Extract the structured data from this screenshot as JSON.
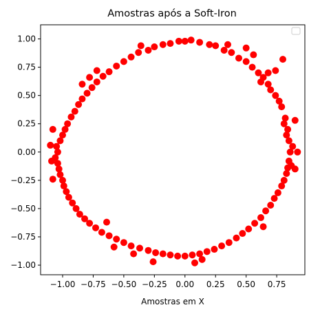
{
  "chart_data": {
    "type": "scatter",
    "title": "Amostras após a Soft-Iron",
    "xlabel": "Amostras em X",
    "ylabel": "",
    "xlim": [
      -1.18,
      0.98
    ],
    "ylim": [
      -1.085,
      1.125
    ],
    "x_ticks": [
      -1.0,
      -0.75,
      -0.5,
      -0.25,
      0.0,
      0.25,
      0.5,
      0.75
    ],
    "x_tick_labels": [
      "−1.00",
      "−0.75",
      "−0.50",
      "−0.25",
      "0.00",
      "0.25",
      "0.50",
      "0.75"
    ],
    "y_ticks": [
      -1.0,
      -0.75,
      -0.5,
      -0.25,
      0.0,
      0.25,
      0.5,
      0.75,
      1.0
    ],
    "y_tick_labels": [
      "−1.00",
      "−0.75",
      "−0.50",
      "−0.25",
      "0.00",
      "0.25",
      "0.50",
      "0.75",
      "1.00"
    ],
    "grid": false,
    "legend": "top-right",
    "legend_entries": [],
    "marker_color": "#ff0000",
    "series": [
      {
        "points": [
          [
            0.86,
            0.0
          ],
          [
            0.85,
            0.1
          ],
          [
            0.84,
            0.2
          ],
          [
            0.82,
            0.3
          ],
          [
            0.79,
            0.4
          ],
          [
            0.74,
            0.5
          ],
          [
            0.68,
            0.6
          ],
          [
            0.6,
            0.7
          ],
          [
            0.5,
            0.8
          ],
          [
            0.38,
            0.88
          ],
          [
            0.25,
            0.94
          ],
          [
            0.12,
            0.97
          ],
          [
            0.0,
            0.98
          ],
          [
            -0.12,
            0.96
          ],
          [
            -0.25,
            0.93
          ],
          [
            -0.38,
            0.88
          ],
          [
            -0.5,
            0.8
          ],
          [
            -0.62,
            0.71
          ],
          [
            -0.72,
            0.62
          ],
          [
            -0.8,
            0.52
          ],
          [
            -0.87,
            0.42
          ],
          [
            -0.93,
            0.31
          ],
          [
            -0.98,
            0.2
          ],
          [
            -1.02,
            0.1
          ],
          [
            -1.04,
            0.0
          ],
          [
            -1.04,
            -0.1
          ],
          [
            -1.02,
            -0.2
          ],
          [
            -0.99,
            -0.3
          ],
          [
            -0.95,
            -0.4
          ],
          [
            -0.89,
            -0.5
          ],
          [
            -0.82,
            -0.59
          ],
          [
            -0.73,
            -0.67
          ],
          [
            -0.62,
            -0.74
          ],
          [
            -0.5,
            -0.8
          ],
          [
            -0.37,
            -0.85
          ],
          [
            -0.24,
            -0.89
          ],
          [
            -0.12,
            -0.91
          ],
          [
            0.0,
            -0.92
          ],
          [
            0.12,
            -0.9
          ],
          [
            0.24,
            -0.86
          ],
          [
            0.36,
            -0.8
          ],
          [
            0.47,
            -0.72
          ],
          [
            0.57,
            -0.63
          ],
          [
            0.66,
            -0.52
          ],
          [
            0.73,
            -0.41
          ],
          [
            0.79,
            -0.3
          ],
          [
            0.83,
            -0.19
          ],
          [
            0.85,
            -0.08
          ],
          [
            0.88,
            0.05
          ],
          [
            0.87,
            -0.12
          ],
          [
            0.9,
            -0.15
          ],
          [
            0.83,
            0.15
          ],
          [
            0.81,
            0.25
          ],
          [
            0.77,
            0.45
          ],
          [
            0.7,
            0.55
          ],
          [
            0.64,
            0.66
          ],
          [
            0.55,
            0.75
          ],
          [
            0.44,
            0.83
          ],
          [
            0.32,
            0.9
          ],
          [
            0.2,
            0.95
          ],
          [
            0.05,
            0.99
          ],
          [
            -0.05,
            0.98
          ],
          [
            -0.18,
            0.95
          ],
          [
            -0.3,
            0.9
          ],
          [
            -0.44,
            0.84
          ],
          [
            -0.56,
            0.76
          ],
          [
            -0.67,
            0.67
          ],
          [
            -0.76,
            0.57
          ],
          [
            -0.84,
            0.47
          ],
          [
            -0.9,
            0.36
          ],
          [
            -0.96,
            0.25
          ],
          [
            -1.0,
            0.15
          ],
          [
            -1.05,
            0.05
          ],
          [
            -1.06,
            -0.05
          ],
          [
            -1.03,
            -0.15
          ],
          [
            -1.0,
            -0.25
          ],
          [
            -0.97,
            -0.35
          ],
          [
            -0.92,
            -0.45
          ],
          [
            -0.86,
            -0.55
          ],
          [
            -0.78,
            -0.63
          ],
          [
            -0.68,
            -0.71
          ],
          [
            -0.56,
            -0.77
          ],
          [
            -0.44,
            -0.83
          ],
          [
            -0.3,
            -0.87
          ],
          [
            -0.18,
            -0.9
          ],
          [
            -0.06,
            -0.92
          ],
          [
            0.06,
            -0.91
          ],
          [
            0.18,
            -0.88
          ],
          [
            0.3,
            -0.83
          ],
          [
            0.42,
            -0.76
          ],
          [
            0.52,
            -0.68
          ],
          [
            0.62,
            -0.58
          ],
          [
            0.7,
            -0.47
          ],
          [
            0.76,
            -0.36
          ],
          [
            0.81,
            -0.25
          ],
          [
            0.84,
            -0.14
          ],
          [
            0.8,
            0.82
          ],
          [
            0.74,
            0.72
          ],
          [
            0.68,
            0.7
          ],
          [
            0.56,
            0.86
          ],
          [
            -0.72,
            0.72
          ],
          [
            -0.84,
            0.6
          ],
          [
            -0.78,
            0.66
          ],
          [
            -1.1,
            0.06
          ],
          [
            -1.09,
            -0.08
          ],
          [
            -1.08,
            0.2
          ],
          [
            -0.58,
            -0.84
          ],
          [
            -0.42,
            -0.9
          ],
          [
            0.14,
            -0.95
          ],
          [
            0.08,
            -0.98
          ],
          [
            -0.36,
            0.94
          ],
          [
            0.35,
            0.95
          ],
          [
            0.62,
            0.62
          ],
          [
            0.9,
            0.28
          ],
          [
            -1.08,
            -0.24
          ],
          [
            -0.26,
            -0.97
          ],
          [
            0.64,
            -0.66
          ],
          [
            0.5,
            0.92
          ],
          [
            -0.64,
            -0.62
          ],
          [
            0.92,
            0.0
          ]
        ]
      }
    ]
  }
}
